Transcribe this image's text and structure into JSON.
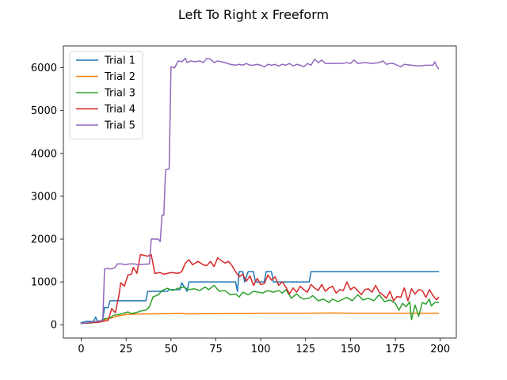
{
  "chart_data": {
    "type": "line",
    "title": "Left To Right x Freeform",
    "xlabel": "",
    "ylabel": "",
    "xlim": [
      -9.95,
      208.95
    ],
    "ylim": [
      -310,
      6510
    ],
    "xticks": [
      0,
      25,
      50,
      75,
      100,
      125,
      150,
      175,
      200
    ],
    "yticks": [
      0,
      1000,
      2000,
      3000,
      4000,
      5000,
      6000
    ],
    "grid": false,
    "legend_position": "top-left",
    "series": [
      {
        "name": "Trial 1",
        "color": "#1f77b4",
        "points": [
          [
            0,
            50
          ],
          [
            3,
            80
          ],
          [
            7,
            80
          ],
          [
            8,
            180
          ],
          [
            9,
            90
          ],
          [
            11,
            90
          ],
          [
            12,
            130
          ],
          [
            13,
            400
          ],
          [
            15,
            400
          ],
          [
            16,
            560
          ],
          [
            36,
            560
          ],
          [
            37,
            780
          ],
          [
            48,
            780
          ],
          [
            49,
            820
          ],
          [
            55,
            820
          ],
          [
            56,
            980
          ],
          [
            59,
            780
          ],
          [
            60,
            1000
          ],
          [
            86,
            1000
          ],
          [
            87,
            780
          ],
          [
            88,
            1240
          ],
          [
            90,
            1240
          ],
          [
            91,
            1000
          ],
          [
            93,
            1240
          ],
          [
            96,
            1240
          ],
          [
            97,
            1000
          ],
          [
            102,
            1000
          ],
          [
            103,
            1240
          ],
          [
            106,
            1240
          ],
          [
            107,
            1000
          ],
          [
            127,
            1000
          ],
          [
            128,
            1240
          ],
          [
            199,
            1240
          ]
        ]
      },
      {
        "name": "Trial 2",
        "color": "#ff7f0e",
        "points": [
          [
            0,
            30
          ],
          [
            5,
            50
          ],
          [
            10,
            80
          ],
          [
            15,
            140
          ],
          [
            20,
            200
          ],
          [
            25,
            240
          ],
          [
            30,
            250
          ],
          [
            40,
            255
          ],
          [
            50,
            260
          ],
          [
            55,
            270
          ],
          [
            58,
            255
          ],
          [
            75,
            260
          ],
          [
            90,
            265
          ],
          [
            100,
            270
          ],
          [
            110,
            270
          ],
          [
            125,
            270
          ],
          [
            140,
            275
          ],
          [
            150,
            270
          ],
          [
            170,
            270
          ],
          [
            199,
            270
          ]
        ]
      },
      {
        "name": "Trial 3",
        "color": "#2ca02c",
        "points": [
          [
            0,
            30
          ],
          [
            5,
            40
          ],
          [
            10,
            60
          ],
          [
            13,
            140
          ],
          [
            16,
            160
          ],
          [
            18,
            220
          ],
          [
            22,
            250
          ],
          [
            26,
            300
          ],
          [
            28,
            260
          ],
          [
            31,
            290
          ],
          [
            33,
            320
          ],
          [
            36,
            340
          ],
          [
            38,
            420
          ],
          [
            40,
            650
          ],
          [
            43,
            700
          ],
          [
            45,
            800
          ],
          [
            48,
            850
          ],
          [
            51,
            800
          ],
          [
            54,
            850
          ],
          [
            57,
            880
          ],
          [
            60,
            820
          ],
          [
            63,
            840
          ],
          [
            66,
            800
          ],
          [
            69,
            880
          ],
          [
            71,
            820
          ],
          [
            74,
            920
          ],
          [
            77,
            780
          ],
          [
            80,
            800
          ],
          [
            83,
            700
          ],
          [
            86,
            720
          ],
          [
            88,
            650
          ],
          [
            90,
            760
          ],
          [
            93,
            700
          ],
          [
            96,
            780
          ],
          [
            99,
            760
          ],
          [
            101,
            740
          ],
          [
            104,
            800
          ],
          [
            107,
            760
          ],
          [
            110,
            800
          ],
          [
            112,
            740
          ],
          [
            114,
            820
          ],
          [
            117,
            620
          ],
          [
            120,
            720
          ],
          [
            122,
            640
          ],
          [
            124,
            600
          ],
          [
            127,
            620
          ],
          [
            129,
            680
          ],
          [
            132,
            560
          ],
          [
            135,
            600
          ],
          [
            138,
            520
          ],
          [
            140,
            600
          ],
          [
            143,
            540
          ],
          [
            146,
            600
          ],
          [
            148,
            640
          ],
          [
            151,
            560
          ],
          [
            154,
            700
          ],
          [
            157,
            580
          ],
          [
            160,
            620
          ],
          [
            163,
            560
          ],
          [
            166,
            700
          ],
          [
            169,
            540
          ],
          [
            172,
            580
          ],
          [
            175,
            500
          ],
          [
            177,
            340
          ],
          [
            179,
            500
          ],
          [
            181,
            420
          ],
          [
            183,
            540
          ],
          [
            184,
            120
          ],
          [
            186,
            460
          ],
          [
            188,
            200
          ],
          [
            190,
            520
          ],
          [
            192,
            480
          ],
          [
            194,
            600
          ],
          [
            195,
            440
          ],
          [
            197,
            520
          ],
          [
            199,
            520
          ]
        ]
      },
      {
        "name": "Trial 4",
        "color": "#d62728",
        "points": [
          [
            0,
            30
          ],
          [
            6,
            50
          ],
          [
            10,
            60
          ],
          [
            12,
            80
          ],
          [
            15,
            100
          ],
          [
            17,
            380
          ],
          [
            19,
            280
          ],
          [
            21,
            680
          ],
          [
            22,
            980
          ],
          [
            24,
            900
          ],
          [
            26,
            1160
          ],
          [
            28,
            1180
          ],
          [
            29,
            1340
          ],
          [
            31,
            1200
          ],
          [
            33,
            1640
          ],
          [
            35,
            1620
          ],
          [
            37,
            1600
          ],
          [
            39,
            1640
          ],
          [
            41,
            1200
          ],
          [
            44,
            1220
          ],
          [
            46,
            1180
          ],
          [
            50,
            1220
          ],
          [
            54,
            1200
          ],
          [
            56,
            1240
          ],
          [
            58,
            1440
          ],
          [
            60,
            1520
          ],
          [
            62,
            1400
          ],
          [
            65,
            1480
          ],
          [
            68,
            1400
          ],
          [
            70,
            1380
          ],
          [
            72,
            1480
          ],
          [
            74,
            1360
          ],
          [
            76,
            1560
          ],
          [
            78,
            1500
          ],
          [
            80,
            1440
          ],
          [
            82,
            1480
          ],
          [
            84,
            1380
          ],
          [
            86,
            1240
          ],
          [
            88,
            1120
          ],
          [
            90,
            1180
          ],
          [
            92,
            1020
          ],
          [
            94,
            1140
          ],
          [
            96,
            920
          ],
          [
            98,
            1080
          ],
          [
            100,
            940
          ],
          [
            102,
            960
          ],
          [
            104,
            1160
          ],
          [
            106,
            1040
          ],
          [
            108,
            1120
          ],
          [
            110,
            920
          ],
          [
            112,
            1000
          ],
          [
            114,
            880
          ],
          [
            116,
            720
          ],
          [
            118,
            860
          ],
          [
            120,
            760
          ],
          [
            122,
            900
          ],
          [
            124,
            820
          ],
          [
            126,
            760
          ],
          [
            128,
            940
          ],
          [
            130,
            860
          ],
          [
            132,
            800
          ],
          [
            134,
            940
          ],
          [
            136,
            780
          ],
          [
            138,
            860
          ],
          [
            140,
            900
          ],
          [
            142,
            740
          ],
          [
            144,
            820
          ],
          [
            146,
            800
          ],
          [
            148,
            1000
          ],
          [
            150,
            820
          ],
          [
            152,
            880
          ],
          [
            154,
            800
          ],
          [
            156,
            700
          ],
          [
            158,
            820
          ],
          [
            160,
            840
          ],
          [
            162,
            760
          ],
          [
            164,
            920
          ],
          [
            166,
            760
          ],
          [
            168,
            700
          ],
          [
            170,
            620
          ],
          [
            172,
            780
          ],
          [
            174,
            560
          ],
          [
            176,
            660
          ],
          [
            178,
            640
          ],
          [
            180,
            860
          ],
          [
            182,
            560
          ],
          [
            184,
            840
          ],
          [
            186,
            720
          ],
          [
            188,
            820
          ],
          [
            190,
            800
          ],
          [
            192,
            640
          ],
          [
            194,
            820
          ],
          [
            196,
            680
          ],
          [
            198,
            580
          ],
          [
            199,
            640
          ]
        ]
      },
      {
        "name": "Trial 5",
        "color": "#9467bd",
        "points": [
          [
            0,
            30
          ],
          [
            5,
            60
          ],
          [
            9,
            80
          ],
          [
            12,
            100
          ],
          [
            13,
            1300
          ],
          [
            15,
            1320
          ],
          [
            16,
            1300
          ],
          [
            18,
            1320
          ],
          [
            19,
            1340
          ],
          [
            20,
            1420
          ],
          [
            23,
            1420
          ],
          [
            24,
            1400
          ],
          [
            27,
            1420
          ],
          [
            30,
            1420
          ],
          [
            31,
            1400
          ],
          [
            38,
            1420
          ],
          [
            39,
            2000
          ],
          [
            43,
            2000
          ],
          [
            44,
            1940
          ],
          [
            45,
            2560
          ],
          [
            46,
            2560
          ],
          [
            47,
            3620
          ],
          [
            49,
            3640
          ],
          [
            50,
            6020
          ],
          [
            52,
            6000
          ],
          [
            54,
            6160
          ],
          [
            56,
            6140
          ],
          [
            58,
            6220
          ],
          [
            59,
            6120
          ],
          [
            61,
            6160
          ],
          [
            63,
            6140
          ],
          [
            66,
            6160
          ],
          [
            68,
            6120
          ],
          [
            70,
            6220
          ],
          [
            72,
            6200
          ],
          [
            74,
            6120
          ],
          [
            76,
            6160
          ],
          [
            78,
            6140
          ],
          [
            80,
            6120
          ],
          [
            83,
            6080
          ],
          [
            86,
            6060
          ],
          [
            88,
            6080
          ],
          [
            90,
            6060
          ],
          [
            92,
            6100
          ],
          [
            94,
            6060
          ],
          [
            96,
            6060
          ],
          [
            98,
            6080
          ],
          [
            100,
            6060
          ],
          [
            102,
            6020
          ],
          [
            104,
            6080
          ],
          [
            106,
            6060
          ],
          [
            108,
            6080
          ],
          [
            110,
            6040
          ],
          [
            112,
            6080
          ],
          [
            114,
            6060
          ],
          [
            116,
            6100
          ],
          [
            118,
            6040
          ],
          [
            120,
            6080
          ],
          [
            122,
            6060
          ],
          [
            124,
            6020
          ],
          [
            126,
            6100
          ],
          [
            128,
            6060
          ],
          [
            130,
            6200
          ],
          [
            132,
            6120
          ],
          [
            134,
            6180
          ],
          [
            136,
            6100
          ],
          [
            140,
            6100
          ],
          [
            145,
            6100
          ],
          [
            148,
            6120
          ],
          [
            150,
            6100
          ],
          [
            152,
            6180
          ],
          [
            154,
            6100
          ],
          [
            158,
            6120
          ],
          [
            162,
            6100
          ],
          [
            166,
            6120
          ],
          [
            168,
            6160
          ],
          [
            170,
            6080
          ],
          [
            172,
            6100
          ],
          [
            174,
            6100
          ],
          [
            176,
            6060
          ],
          [
            178,
            6020
          ],
          [
            180,
            6080
          ],
          [
            184,
            6060
          ],
          [
            188,
            6040
          ],
          [
            192,
            6060
          ],
          [
            196,
            6060
          ],
          [
            197,
            6140
          ],
          [
            198,
            6040
          ],
          [
            199,
            5980
          ]
        ]
      }
    ]
  }
}
